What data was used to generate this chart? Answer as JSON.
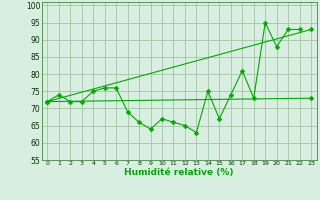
{
  "x": [
    0,
    1,
    2,
    3,
    4,
    5,
    6,
    7,
    8,
    9,
    10,
    11,
    12,
    13,
    14,
    15,
    16,
    17,
    18,
    19,
    20,
    21,
    22,
    23
  ],
  "line1_y": [
    72,
    74,
    72,
    72,
    75,
    76,
    76,
    69,
    66,
    64,
    67,
    66,
    65,
    63,
    75,
    67,
    74,
    81,
    73,
    95,
    88,
    93,
    93,
    null
  ],
  "line2_pts": [
    [
      0,
      72
    ],
    [
      23,
      93
    ]
  ],
  "line3_pts": [
    [
      0,
      72
    ],
    [
      23,
      73
    ]
  ],
  "bg_color": "#d8eee0",
  "grid_color": "#99bb99",
  "line_color": "#00aa00",
  "xlabel": "Humidité relative (%)",
  "ylim": [
    55,
    101
  ],
  "xlim": [
    -0.5,
    23.5
  ],
  "yticks": [
    55,
    60,
    65,
    70,
    75,
    80,
    85,
    90,
    95,
    100
  ],
  "xticks": [
    0,
    1,
    2,
    3,
    4,
    5,
    6,
    7,
    8,
    9,
    10,
    11,
    12,
    13,
    14,
    15,
    16,
    17,
    18,
    19,
    20,
    21,
    22,
    23
  ],
  "xtick_labels": [
    "0",
    "1",
    "2",
    "3",
    "4",
    "5",
    "6",
    "7",
    "8",
    "9",
    "10",
    "11",
    "12",
    "13",
    "14",
    "15",
    "16",
    "17",
    "18",
    "19",
    "20",
    "21",
    "22",
    "23"
  ]
}
